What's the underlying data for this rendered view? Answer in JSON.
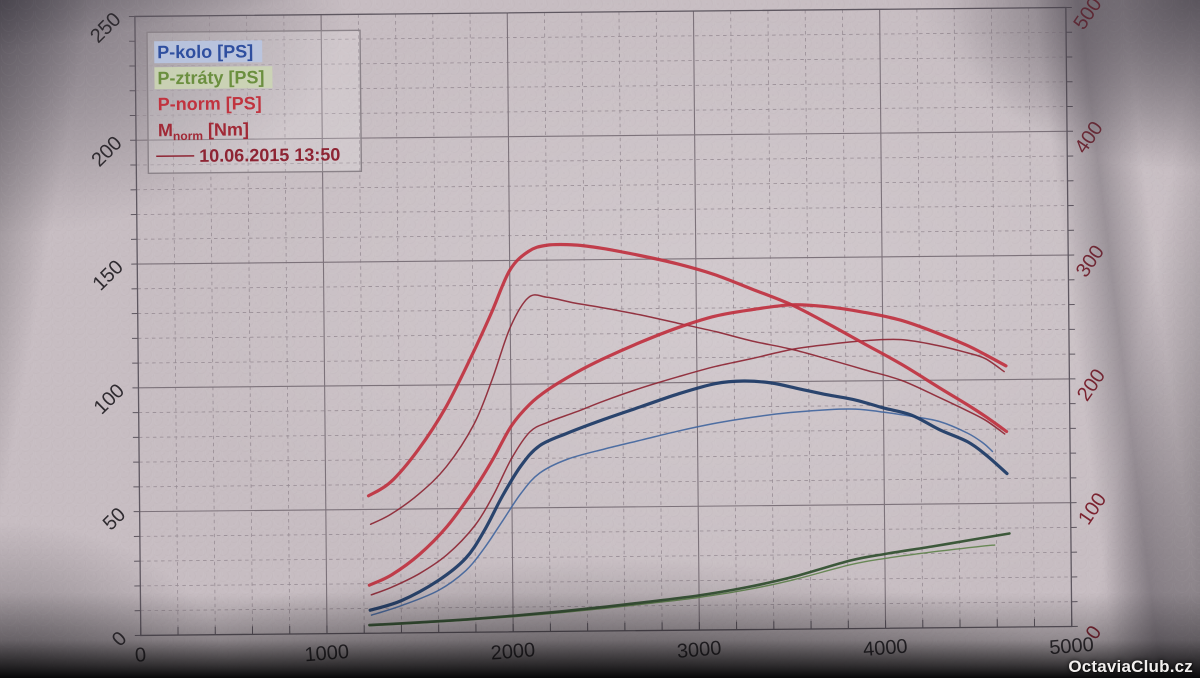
{
  "watermark": {
    "text": "OctaviaClub.cz"
  },
  "legend": {
    "items": [
      {
        "label": "P-kolo [PS]",
        "color": "#2f4f9f",
        "highlight": "#b9c7e4"
      },
      {
        "label": "P-ztráty [PS]",
        "color": "#6b8f3f",
        "highlight": "#ccd7b4"
      },
      {
        "label": "P-norm [PS]",
        "color": "#c1333f",
        "highlight": ""
      }
    ],
    "mnorm_item": {
      "main": "M",
      "sub": "norm",
      "rest": " [Nm]",
      "color": "#a12936"
    },
    "ref_run": {
      "label": "10.06.2015 13:50",
      "color": "#8e2433"
    }
  },
  "chart_data": {
    "type": "line",
    "title": "",
    "xlabel": "",
    "ylabel_left": "PS",
    "ylabel_right": "Nm",
    "x_axis": {
      "min": 0,
      "max": 5000,
      "minor_step": 200,
      "major_ticks": [
        0,
        1000,
        2000,
        3000,
        4000,
        5000
      ],
      "labels": [
        "0",
        "1000",
        "2000",
        "3000",
        "4000",
        "5000"
      ]
    },
    "y_left": {
      "min": 0,
      "max": 250,
      "minor_step": 10,
      "major_ticks": [
        0,
        50,
        100,
        150,
        200,
        250
      ],
      "labels": [
        "0",
        "50",
        "100",
        "150",
        "200",
        "250"
      ]
    },
    "y_right": {
      "min": 0,
      "max": 500,
      "minor_step": 20,
      "major_ticks": [
        0,
        100,
        200,
        300,
        400,
        500
      ],
      "labels": [
        "0",
        "100",
        "200",
        "300",
        "400",
        "500"
      ]
    },
    "grid": {
      "minor_color": "#978c94",
      "major_color": "#7c727a",
      "border_color": "#5e5760",
      "label_color": "#2f2b30",
      "right_label_color": "#7c2330"
    },
    "series": [
      {
        "name": "P-ztraty-ref (10.06.2015)",
        "slug": "p-ztraty-ref",
        "axis": "left",
        "width": 1.4,
        "color": "#61834e",
        "points": [
          [
            1228,
            3.0
          ],
          [
            1500,
            3.9
          ],
          [
            1750,
            4.9
          ],
          [
            2000,
            6.1
          ],
          [
            2250,
            7.5
          ],
          [
            2500,
            9.2
          ],
          [
            2750,
            11.1
          ],
          [
            3000,
            13.2
          ],
          [
            3250,
            16.0
          ],
          [
            3500,
            19.8
          ],
          [
            3815,
            25.8
          ],
          [
            4000,
            28.2
          ],
          [
            4250,
            30.6
          ],
          [
            4500,
            32.6
          ],
          [
            4590,
            33.2
          ]
        ]
      },
      {
        "name": "P-ztraty [PS]",
        "slug": "p-ztraty",
        "axis": "left",
        "width": 2.6,
        "color": "#31502f",
        "points": [
          [
            1228,
            3.3
          ],
          [
            1500,
            4.2
          ],
          [
            1750,
            5.2
          ],
          [
            2000,
            6.5
          ],
          [
            2250,
            8.0
          ],
          [
            2500,
            9.8
          ],
          [
            2750,
            11.8
          ],
          [
            3000,
            14.0
          ],
          [
            3250,
            17.0
          ],
          [
            3500,
            21.0
          ],
          [
            3815,
            27.5
          ],
          [
            4000,
            30.0
          ],
          [
            4250,
            32.8
          ],
          [
            4500,
            35.8
          ],
          [
            4670,
            37.8
          ]
        ]
      },
      {
        "name": "P-kolo-ref (10.06.2015)",
        "slug": "p-kolo-ref",
        "axis": "left",
        "width": 1.5,
        "color": "#44679f",
        "points": [
          [
            1240,
            7.3
          ],
          [
            1400,
            11
          ],
          [
            1600,
            17
          ],
          [
            1750,
            25
          ],
          [
            1850,
            34
          ],
          [
            1950,
            45
          ],
          [
            2050,
            56
          ],
          [
            2150,
            64
          ],
          [
            2300,
            69.5
          ],
          [
            2500,
            73.5
          ],
          [
            2700,
            77
          ],
          [
            2900,
            80.5
          ],
          [
            3100,
            83.5
          ],
          [
            3300,
            85.8
          ],
          [
            3500,
            87.5
          ],
          [
            3700,
            88.5
          ],
          [
            3850,
            88.6
          ],
          [
            4000,
            87.3
          ],
          [
            4150,
            85.5
          ],
          [
            4300,
            83.3
          ],
          [
            4450,
            78.5
          ],
          [
            4534,
            74.4
          ],
          [
            4583,
            71
          ]
        ]
      },
      {
        "name": "P-kolo [PS]",
        "slug": "p-kolo",
        "axis": "left",
        "width": 3.2,
        "color": "#1d3a66",
        "points": [
          [
            1233,
            9.3
          ],
          [
            1400,
            13
          ],
          [
            1600,
            21
          ],
          [
            1750,
            30
          ],
          [
            1850,
            41
          ],
          [
            1950,
            55
          ],
          [
            2050,
            67
          ],
          [
            2150,
            75
          ],
          [
            2300,
            80
          ],
          [
            2500,
            85.5
          ],
          [
            2700,
            90.5
          ],
          [
            2900,
            95.5
          ],
          [
            3100,
            99.5
          ],
          [
            3250,
            100.4
          ],
          [
            3400,
            99.5
          ],
          [
            3550,
            97
          ],
          [
            3700,
            94.5
          ],
          [
            3850,
            92.3
          ],
          [
            4000,
            89
          ],
          [
            4150,
            86
          ],
          [
            4300,
            80
          ],
          [
            4450,
            75
          ],
          [
            4550,
            69.5
          ],
          [
            4660,
            62
          ]
        ]
      },
      {
        "name": "P-norm-ref (10.06.2015)",
        "slug": "p-norm-ref",
        "axis": "left",
        "width": 1.5,
        "color": "#8e2836",
        "points": [
          [
            1240,
            15.5
          ],
          [
            1350,
            18.5
          ],
          [
            1500,
            23.9
          ],
          [
            1650,
            31.5
          ],
          [
            1800,
            43.1
          ],
          [
            1900,
            55.2
          ],
          [
            2000,
            70
          ],
          [
            2100,
            80.7
          ],
          [
            2200,
            84.6
          ],
          [
            2350,
            88.6
          ],
          [
            2500,
            92.9
          ],
          [
            2700,
            98
          ],
          [
            2900,
            102.4
          ],
          [
            3100,
            106.4
          ],
          [
            3300,
            109.5
          ],
          [
            3512,
            113
          ],
          [
            3700,
            114.8
          ],
          [
            3900,
            116.2
          ],
          [
            4100,
            116.5
          ],
          [
            4300,
            113.9
          ],
          [
            4450,
            111
          ],
          [
            4550,
            108.5
          ],
          [
            4650,
            103.2
          ]
        ]
      },
      {
        "name": "M-norm-ref (10.06.2015)",
        "slug": "m-norm-ref",
        "axis": "right",
        "width": 1.5,
        "color": "#8e2836",
        "points": [
          [
            1240,
            88
          ],
          [
            1350,
            96
          ],
          [
            1500,
            112
          ],
          [
            1650,
            134
          ],
          [
            1800,
            168
          ],
          [
            1900,
            204
          ],
          [
            2000,
            246
          ],
          [
            2100,
            270
          ],
          [
            2200,
            270
          ],
          [
            2350,
            265
          ],
          [
            2500,
            261
          ],
          [
            2700,
            255
          ],
          [
            2900,
            248
          ],
          [
            3100,
            241
          ],
          [
            3300,
            233
          ],
          [
            3512,
            226
          ],
          [
            3700,
            218
          ],
          [
            3900,
            209
          ],
          [
            4100,
            200
          ],
          [
            4300,
            186
          ],
          [
            4450,
            175
          ],
          [
            4550,
            167
          ],
          [
            4650,
            156
          ]
        ]
      },
      {
        "name": "P-norm [PS]",
        "slug": "p-norm",
        "axis": "left",
        "width": 3.2,
        "color": "#bf3341",
        "points": [
          [
            1230,
            19.4
          ],
          [
            1350,
            23.5
          ],
          [
            1500,
            31.6
          ],
          [
            1650,
            42.8
          ],
          [
            1800,
            57.9
          ],
          [
            1900,
            69.8
          ],
          [
            2000,
            83.1
          ],
          [
            2100,
            91.8
          ],
          [
            2200,
            97.7
          ],
          [
            2350,
            104.4
          ],
          [
            2500,
            110
          ],
          [
            2700,
            116.5
          ],
          [
            2900,
            122.2
          ],
          [
            3100,
            126.7
          ],
          [
            3300,
            129.2
          ],
          [
            3512,
            131
          ],
          [
            3700,
            130.1
          ],
          [
            3900,
            127.7
          ],
          [
            4100,
            124.3
          ],
          [
            4300,
            118.8
          ],
          [
            4450,
            114
          ],
          [
            4550,
            110.1
          ],
          [
            4660,
            105.5
          ]
        ]
      },
      {
        "name": "M-norm [Nm]",
        "slug": "m-norm",
        "axis": "right",
        "width": 3.2,
        "color": "#bf3341",
        "points": [
          [
            1230,
            111
          ],
          [
            1350,
            122
          ],
          [
            1500,
            148
          ],
          [
            1650,
            182
          ],
          [
            1800,
            226
          ],
          [
            1900,
            258
          ],
          [
            2000,
            292
          ],
          [
            2100,
            307
          ],
          [
            2200,
            312
          ],
          [
            2350,
            312
          ],
          [
            2500,
            309
          ],
          [
            2700,
            303
          ],
          [
            2900,
            296
          ],
          [
            3100,
            287
          ],
          [
            3300,
            275
          ],
          [
            3512,
            262
          ],
          [
            3700,
            247
          ],
          [
            3900,
            230
          ],
          [
            4100,
            213
          ],
          [
            4300,
            194
          ],
          [
            4450,
            180
          ],
          [
            4550,
            170
          ],
          [
            4660,
            158
          ]
        ]
      }
    ]
  }
}
